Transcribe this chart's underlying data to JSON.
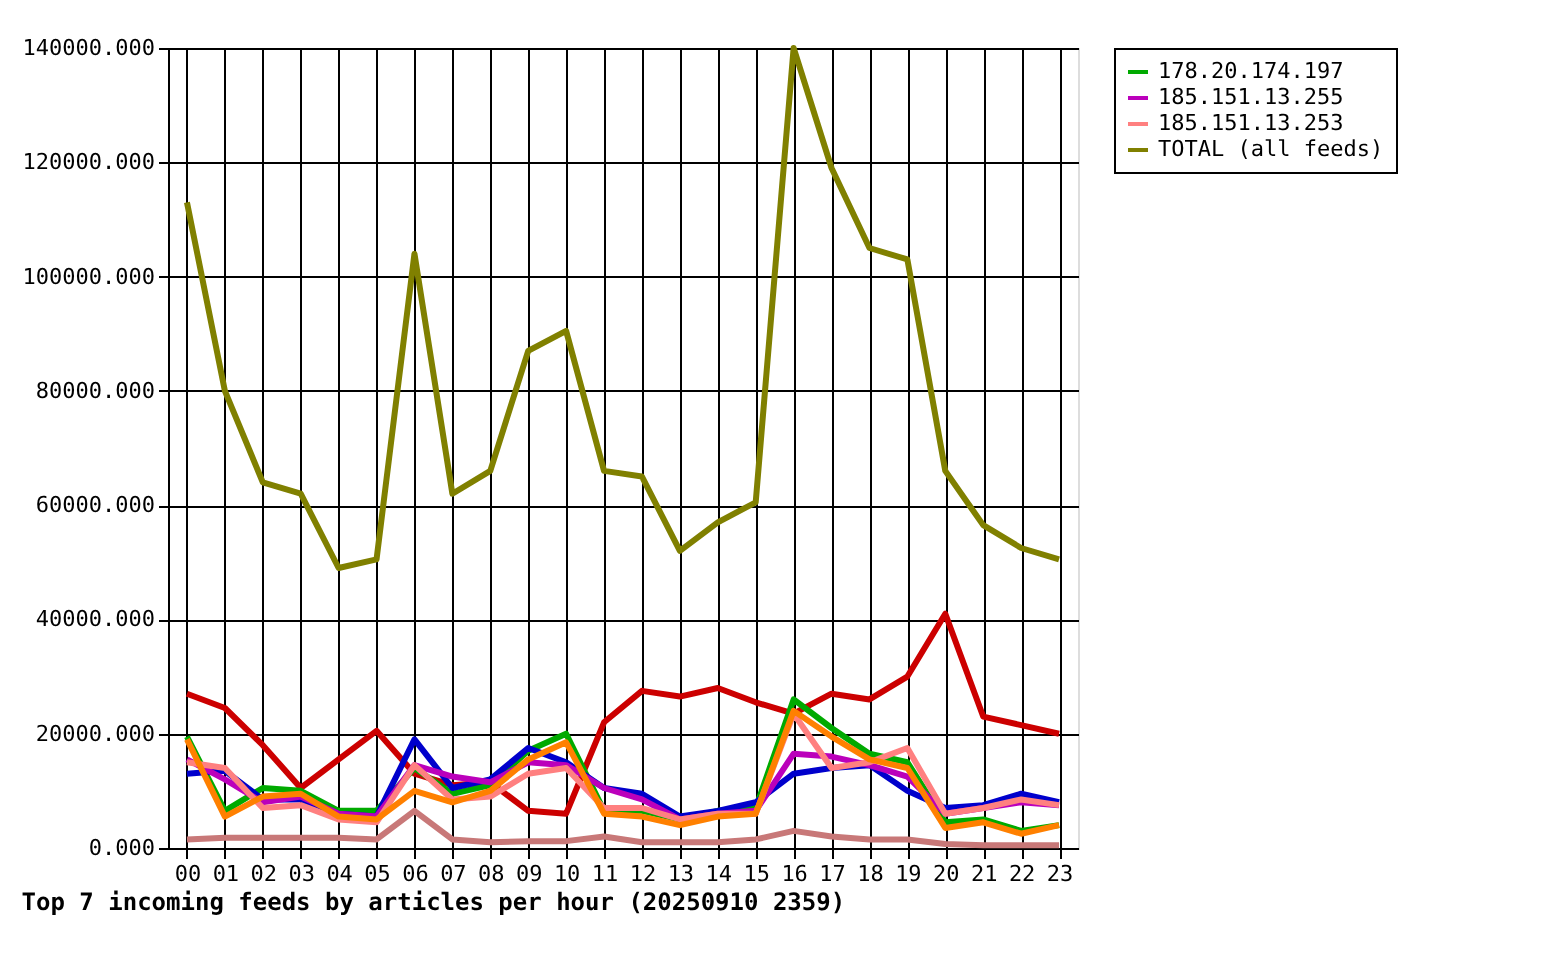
{
  "chart_data": {
    "type": "line",
    "title": "Top 7 incoming feeds by articles per hour (20250910 2359)",
    "categories": [
      "00",
      "01",
      "02",
      "03",
      "04",
      "05",
      "06",
      "07",
      "08",
      "09",
      "10",
      "11",
      "12",
      "13",
      "14",
      "15",
      "16",
      "17",
      "18",
      "19",
      "20",
      "21",
      "22",
      "23"
    ],
    "series": [
      {
        "color": "#cc0000",
        "values": [
          27000,
          24500,
          18000,
          10500,
          15500,
          20500,
          13000,
          11000,
          11500,
          6500,
          6000,
          22000,
          27500,
          26500,
          28000,
          25500,
          23500,
          27000,
          26000,
          30000,
          41000,
          23000,
          21500,
          20000
        ]
      },
      {
        "name": "178.20.174.197",
        "color": "#00aa00",
        "values": [
          19500,
          6500,
          10500,
          10000,
          6500,
          6500,
          14000,
          9500,
          11000,
          17000,
          20000,
          6500,
          6500,
          5000,
          6500,
          7000,
          26000,
          21000,
          16500,
          15000,
          4500,
          5000,
          3000,
          4000
        ]
      },
      {
        "color": "#0000cc",
        "values": [
          13000,
          13500,
          8500,
          8500,
          6000,
          5500,
          19000,
          10500,
          12000,
          17500,
          15000,
          10500,
          9500,
          5500,
          6500,
          8000,
          13000,
          14000,
          14500,
          10000,
          7000,
          7500,
          9500,
          8000
        ]
      },
      {
        "name": "185.151.13.255",
        "color": "#bb00bb",
        "values": [
          15500,
          12000,
          8000,
          9000,
          6000,
          5500,
          14500,
          12500,
          11500,
          15000,
          14500,
          10500,
          8500,
          5000,
          6000,
          6500,
          16500,
          16000,
          14500,
          12500,
          6000,
          7000,
          8000,
          7500
        ]
      },
      {
        "name": "185.151.13.253",
        "color": "#ff8080",
        "values": [
          15000,
          14000,
          7000,
          7500,
          5000,
          4500,
          14500,
          8500,
          9000,
          13000,
          14000,
          7000,
          7000,
          5000,
          6000,
          6000,
          23500,
          14000,
          15000,
          17500,
          6000,
          7000,
          8500,
          7500
        ]
      },
      {
        "color": "#ff8000",
        "values": [
          19000,
          5500,
          9000,
          9500,
          5500,
          5000,
          10000,
          8000,
          10000,
          15500,
          18500,
          6000,
          5500,
          4000,
          5500,
          6000,
          24000,
          19500,
          15500,
          14000,
          3500,
          4500,
          2500,
          4000
        ]
      },
      {
        "color": "#c87878",
        "values": [
          1500,
          1800,
          1800,
          1800,
          1800,
          1500,
          6500,
          1500,
          1000,
          1200,
          1200,
          2000,
          1000,
          1000,
          1000,
          1500,
          3000,
          2000,
          1500,
          1500,
          700,
          500,
          500,
          500
        ]
      },
      {
        "name": "TOTAL (all feeds)",
        "color": "#808000",
        "values": [
          113000,
          80000,
          64000,
          62000,
          49000,
          50500,
          104000,
          62000,
          66000,
          87000,
          90500,
          66000,
          65000,
          52000,
          57000,
          60500,
          140000,
          119000,
          105000,
          103000,
          66000,
          56500,
          52500,
          50500
        ]
      }
    ],
    "ylim": [
      0,
      140000
    ],
    "yticks": [
      {
        "value": 0,
        "label": "0.000"
      },
      {
        "value": 20000,
        "label": "20000.000"
      },
      {
        "value": 40000,
        "label": "40000.000"
      },
      {
        "value": 60000,
        "label": "60000.000"
      },
      {
        "value": 80000,
        "label": "80000.000"
      },
      {
        "value": 100000,
        "label": "100000.000"
      },
      {
        "value": 120000,
        "label": "120000.000"
      },
      {
        "value": 140000,
        "label": "140000.000"
      }
    ],
    "grid": true,
    "legend": "right",
    "marker": "none",
    "line_style": "solid"
  }
}
